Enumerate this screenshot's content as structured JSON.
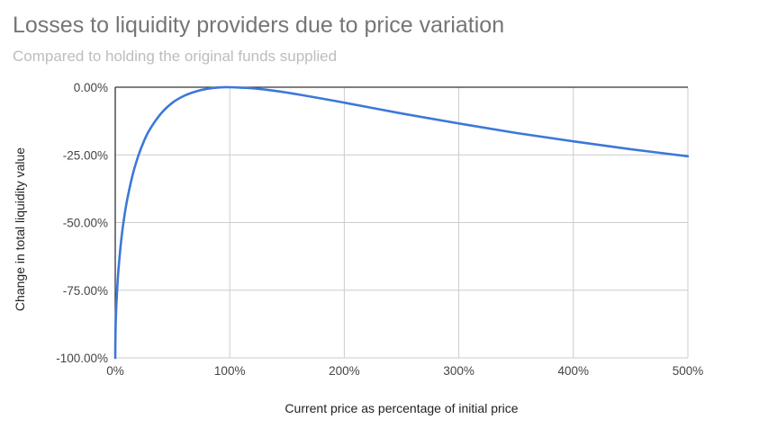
{
  "chart_data": {
    "type": "line",
    "title": "Losses to liquidity providers due to price variation",
    "subtitle": "Compared to holding the original funds supplied",
    "xlabel": "Current price as percentage of initial price",
    "ylabel": "Change in total liquidity value",
    "xlim": [
      0,
      5
    ],
    "ylim": [
      -1,
      0
    ],
    "x_ticks": [
      0,
      1,
      2,
      3,
      4,
      5
    ],
    "x_tick_labels": [
      "0%",
      "100%",
      "200%",
      "300%",
      "400%",
      "500%"
    ],
    "y_ticks": [
      0,
      -0.25,
      -0.5,
      -0.75,
      -1
    ],
    "y_tick_labels": [
      "0.00%",
      "-25.00%",
      "-50.00%",
      "-75.00%",
      "-100.00%"
    ],
    "grid": true,
    "series": [
      {
        "name": "Change in total liquidity value",
        "color": "#3c78d8",
        "x": [
          0,
          0.002,
          0.005,
          0.01,
          0.02,
          0.03,
          0.05,
          0.07,
          0.1,
          0.15,
          0.2,
          0.25,
          0.3,
          0.4,
          0.5,
          0.6,
          0.7,
          0.8,
          0.9,
          1,
          1.25,
          1.5,
          2,
          2.5,
          3,
          3.5,
          4,
          4.5,
          5
        ],
        "values": [
          -1,
          -0.911,
          -0.859,
          -0.802,
          -0.723,
          -0.664,
          -0.574,
          -0.505,
          -0.425,
          -0.327,
          -0.255,
          -0.2,
          -0.157,
          -0.097,
          -0.057,
          -0.032,
          -0.016,
          -0.006,
          -0.001,
          0,
          -0.006,
          -0.02,
          -0.057,
          -0.097,
          -0.134,
          -0.169,
          -0.2,
          -0.229,
          -0.255
        ]
      }
    ]
  }
}
